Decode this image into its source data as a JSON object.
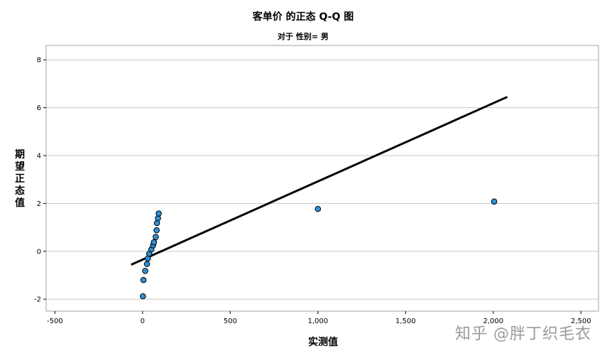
{
  "chart_data": {
    "type": "scatter",
    "title": "客单价 的正态 Q-Q 图",
    "subtitle": "对于 性别= 男",
    "xlabel": "实测值",
    "ylabel": "期望正态值",
    "xlim": [
      -550,
      2600
    ],
    "ylim": [
      -2.5,
      8.6
    ],
    "x_ticks": [
      -500,
      0,
      500,
      1000,
      1500,
      2000,
      2500
    ],
    "x_tick_labels": [
      "-500",
      "0",
      "500",
      "1,000",
      "1,500",
      "2,000",
      "2,500"
    ],
    "y_ticks": [
      -2,
      0,
      2,
      4,
      6,
      8
    ],
    "y_tick_labels": [
      "-2",
      "0",
      "2",
      "4",
      "6",
      "8"
    ],
    "grid": "horizontal",
    "colors": {
      "point_fill": "#2e8fd6",
      "point_stroke": "#000000",
      "line": "#000000",
      "grid": "#c8c8c8"
    },
    "points": [
      {
        "x": 2,
        "y": -1.88
      },
      {
        "x": 5,
        "y": -1.2
      },
      {
        "x": 15,
        "y": -0.82
      },
      {
        "x": 25,
        "y": -0.53
      },
      {
        "x": 30,
        "y": -0.3
      },
      {
        "x": 38,
        "y": -0.1
      },
      {
        "x": 50,
        "y": 0.08
      },
      {
        "x": 60,
        "y": 0.25
      },
      {
        "x": 65,
        "y": 0.38
      },
      {
        "x": 75,
        "y": 0.6
      },
      {
        "x": 80,
        "y": 0.88
      },
      {
        "x": 82,
        "y": 1.18
      },
      {
        "x": 88,
        "y": 1.38
      },
      {
        "x": 92,
        "y": 1.58
      },
      {
        "x": 1000,
        "y": 1.77
      },
      {
        "x": 2005,
        "y": 2.08
      }
    ],
    "reference_line": {
      "x1": -65,
      "y1": -0.56,
      "x2": 2080,
      "y2": 6.45
    }
  },
  "watermark": "知乎 @胖丁织毛衣"
}
